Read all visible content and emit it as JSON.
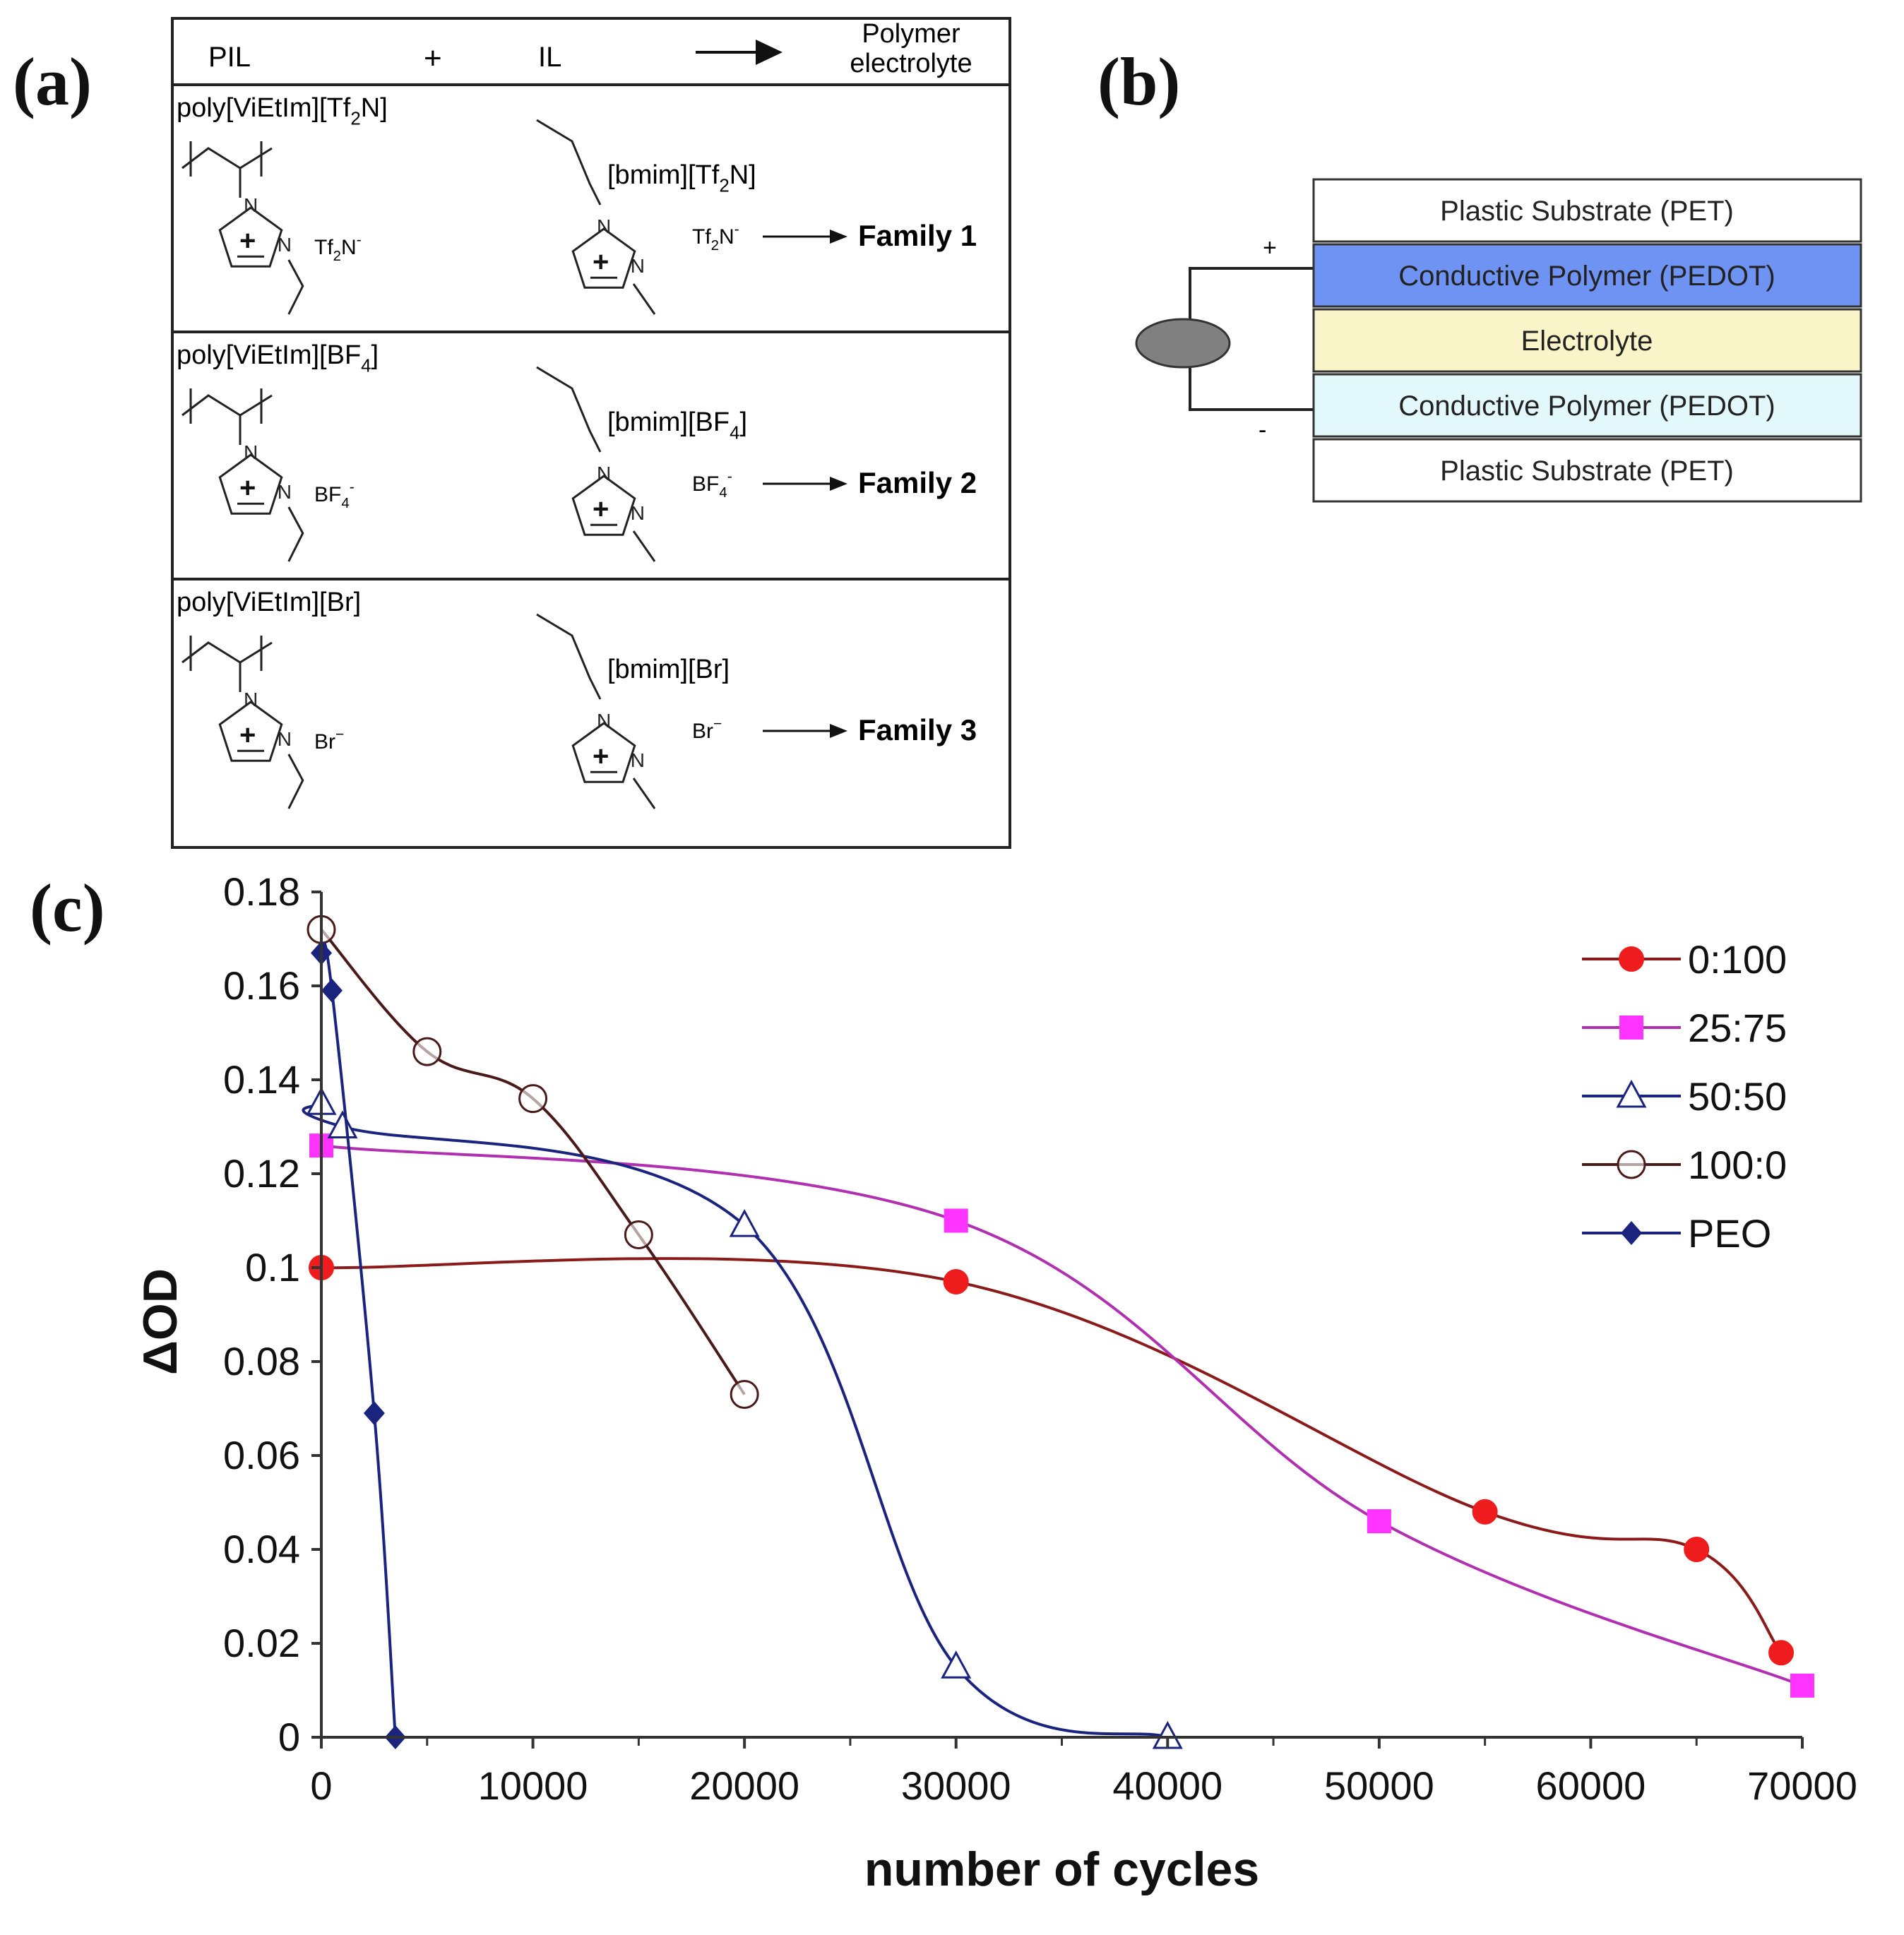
{
  "panels": {
    "a": "(a)",
    "b": "(b)",
    "c": "(c)"
  },
  "scheme": {
    "header": {
      "pil": "PIL",
      "plus": "+",
      "il": "IL",
      "product_line1": "Polymer",
      "product_line2": "electrolyte"
    },
    "rows": [
      {
        "pil_base": "poly[ViEtIm][Tf",
        "pil_sub": "2",
        "pil_end": "N]",
        "pil_anion": "Tf",
        "pil_anion_sub": "2",
        "pil_anion_end": "N",
        "pil_anion_sup": "-",
        "il_base": "[bmim][Tf",
        "il_sub": "2",
        "il_end": "N]",
        "il_anion": "Tf",
        "il_anion_sub": "2",
        "il_anion_end": "N",
        "il_anion_sup": "-",
        "family": "Family 1"
      },
      {
        "pil_base": "poly[ViEtIm][BF",
        "pil_sub": "4",
        "pil_end": "]",
        "pil_anion": "BF",
        "pil_anion_sub": "4",
        "pil_anion_end": "",
        "pil_anion_sup": "-",
        "il_base": "[bmim][BF",
        "il_sub": "4",
        "il_end": "]",
        "il_anion": "BF",
        "il_anion_sub": "4",
        "il_anion_end": "",
        "il_anion_sup": "-",
        "family": "Family 2"
      },
      {
        "pil_base": "poly[ViEtIm][Br]",
        "pil_sub": "",
        "pil_end": "",
        "pil_anion": "Br",
        "pil_anion_sub": "",
        "pil_anion_end": "",
        "pil_anion_sup": "−",
        "il_base": "[bmim][Br]",
        "il_sub": "",
        "il_end": "",
        "il_anion": "Br",
        "il_anion_sub": "",
        "il_anion_end": "",
        "il_anion_sup": "−",
        "family": "Family 3"
      }
    ],
    "ring_labels": {
      "n": "N",
      "plus": "+"
    }
  },
  "device": {
    "plus_sign": "+",
    "minus_sign": "-",
    "layers": [
      {
        "label": "Plastic Substrate (PET)",
        "color": "#ffffff"
      },
      {
        "label": "Conductive Polymer (PEDOT)",
        "color": "#6f93f2"
      },
      {
        "label": "Electrolyte",
        "color": "#faf5c8"
      },
      {
        "label": "Conductive Polymer (PEDOT)",
        "color": "#e3f8fa"
      },
      {
        "label": "Plastic Substrate (PET)",
        "color": "#ffffff"
      }
    ]
  },
  "chart_data": {
    "type": "line",
    "title": "",
    "xlabel": "number of cycles",
    "ylabel": "ΔOD",
    "xlim": [
      0,
      70000
    ],
    "ylim": [
      0,
      0.18
    ],
    "xticks": [
      0,
      10000,
      20000,
      30000,
      40000,
      50000,
      60000,
      70000
    ],
    "xtick_labels": [
      "0",
      "10000",
      "20000",
      "30000",
      "40000",
      "50000",
      "60000",
      "70000"
    ],
    "yticks": [
      0,
      0.02,
      0.04,
      0.06,
      0.08,
      0.1,
      0.12,
      0.14,
      0.16,
      0.18
    ],
    "ytick_labels": [
      "0",
      "0.02",
      "0.04",
      "0.06",
      "0.08",
      "0.1",
      "0.12",
      "0.14",
      "0.16",
      "0.18"
    ],
    "legend_position": "top-right",
    "series": [
      {
        "name": "0:100",
        "color": "#8b1a1a",
        "marker": "circle-filled",
        "marker_color": "#ee1c1c",
        "x": [
          0,
          30000,
          55000,
          65000,
          69000
        ],
        "y": [
          0.1,
          0.097,
          0.048,
          0.04,
          0.018
        ]
      },
      {
        "name": "25:75",
        "color": "#b030b0",
        "marker": "square-filled",
        "marker_color": "#ff33ff",
        "x": [
          0,
          30000,
          50000,
          70000
        ],
        "y": [
          0.126,
          0.11,
          0.046,
          0.011
        ]
      },
      {
        "name": "50:50",
        "color": "#1a237e",
        "marker": "triangle-open",
        "marker_color": "#1a237e",
        "x": [
          0,
          1000,
          20000,
          30000,
          40000
        ],
        "y": [
          0.135,
          0.13,
          0.109,
          0.015,
          0
        ]
      },
      {
        "name": "100:0",
        "color": "#4a1a1a",
        "marker": "circle-open",
        "marker_color": "#4a1a1a",
        "x": [
          0,
          5000,
          10000,
          15000,
          20000
        ],
        "y": [
          0.172,
          0.146,
          0.136,
          0.107,
          0.073
        ]
      },
      {
        "name": "PEO",
        "color": "#1a237e",
        "marker": "diamond-filled",
        "marker_color": "#1a237e",
        "x": [
          0,
          500,
          2500,
          3500
        ],
        "y": [
          0.167,
          0.159,
          0.069,
          0
        ]
      }
    ]
  }
}
